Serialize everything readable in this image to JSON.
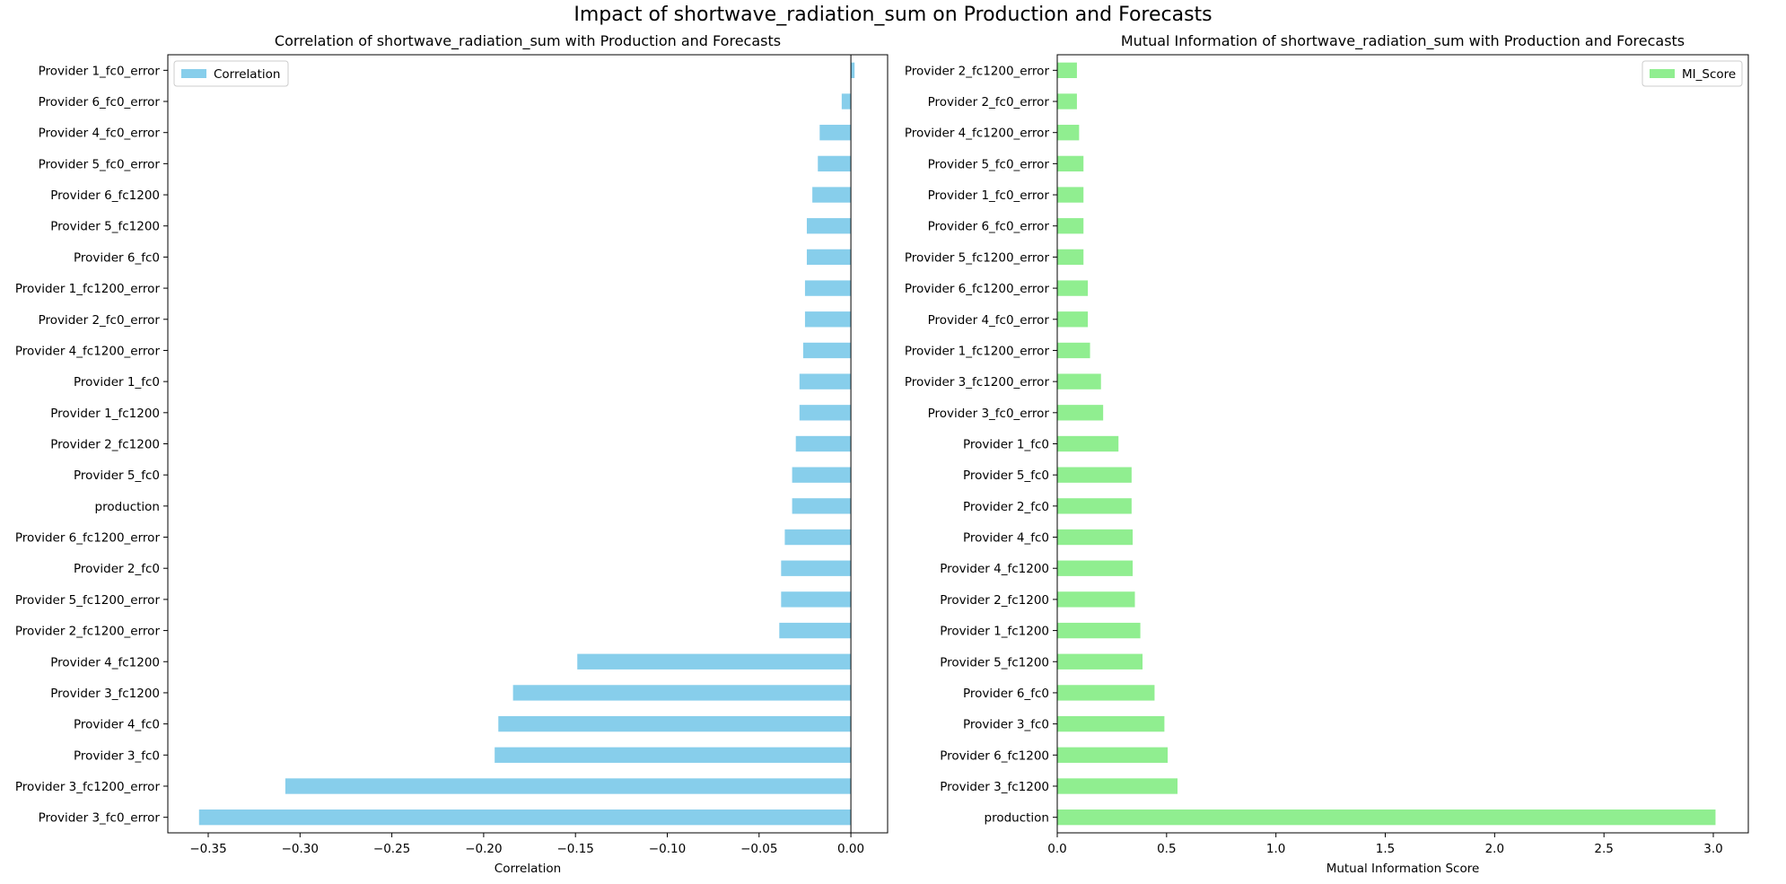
{
  "figure": {
    "suptitle": "Impact of shortwave_radiation_sum on Production and Forecasts"
  },
  "chart_data": [
    {
      "type": "bar",
      "orientation": "horizontal",
      "title": "Correlation of shortwave_radiation_sum with Production and Forecasts",
      "xlabel": "Correlation",
      "ylabel": "",
      "xlim": [
        -0.372,
        0.02
      ],
      "xticks": [
        -0.35,
        -0.3,
        -0.25,
        -0.2,
        -0.15,
        -0.1,
        -0.05,
        0.0
      ],
      "xtick_labels": [
        "−0.35",
        "−0.30",
        "−0.25",
        "−0.20",
        "−0.15",
        "−0.10",
        "−0.05",
        "0.00"
      ],
      "zero_line": true,
      "legend": {
        "position": "top-left",
        "entries": [
          "Correlation"
        ]
      },
      "color": "#87ceeb",
      "grid": false,
      "categories": [
        "Provider 1_fc0_error",
        "Provider 6_fc0_error",
        "Provider 4_fc0_error",
        "Provider 5_fc0_error",
        "Provider 6_fc1200",
        "Provider 5_fc1200",
        "Provider 6_fc0",
        "Provider 1_fc1200_error",
        "Provider 2_fc0_error",
        "Provider 4_fc1200_error",
        "Provider 1_fc0",
        "Provider 1_fc1200",
        "Provider 2_fc1200",
        "Provider 5_fc0",
        "production",
        "Provider 6_fc1200_error",
        "Provider 2_fc0",
        "Provider 5_fc1200_error",
        "Provider 2_fc1200_error",
        "Provider 4_fc1200",
        "Provider 3_fc1200",
        "Provider 4_fc0",
        "Provider 3_fc0",
        "Provider 3_fc1200_error",
        "Provider 3_fc0_error"
      ],
      "series": [
        {
          "name": "Correlation",
          "values": [
            0.002,
            -0.005,
            -0.017,
            -0.018,
            -0.021,
            -0.024,
            -0.024,
            -0.025,
            -0.025,
            -0.026,
            -0.028,
            -0.028,
            -0.03,
            -0.032,
            -0.032,
            -0.036,
            -0.038,
            -0.038,
            -0.039,
            -0.149,
            -0.184,
            -0.192,
            -0.194,
            -0.308,
            -0.355
          ]
        }
      ]
    },
    {
      "type": "bar",
      "orientation": "horizontal",
      "title": "Mutual Information of shortwave_radiation_sum with Production and Forecasts",
      "xlabel": "Mutual Information Score",
      "ylabel": "",
      "xlim": [
        0,
        3.16
      ],
      "xticks": [
        0,
        0.5,
        1.0,
        1.5,
        2.0,
        2.5,
        3.0
      ],
      "xtick_labels": [
        "0.0",
        "0.5",
        "1.0",
        "1.5",
        "2.0",
        "2.5",
        "3.0"
      ],
      "zero_line": false,
      "legend": {
        "position": "top-right",
        "entries": [
          "MI_Score"
        ]
      },
      "color": "#90ee90",
      "grid": false,
      "categories": [
        "Provider 2_fc1200_error",
        "Provider 2_fc0_error",
        "Provider 4_fc1200_error",
        "Provider 5_fc0_error",
        "Provider 1_fc0_error",
        "Provider 6_fc0_error",
        "Provider 5_fc1200_error",
        "Provider 6_fc1200_error",
        "Provider 4_fc0_error",
        "Provider 1_fc1200_error",
        "Provider 3_fc1200_error",
        "Provider 3_fc0_error",
        "Provider 1_fc0",
        "Provider 5_fc0",
        "Provider 2_fc0",
        "Provider 4_fc0",
        "Provider 4_fc1200",
        "Provider 2_fc1200",
        "Provider 1_fc1200",
        "Provider 5_fc1200",
        "Provider 6_fc0",
        "Provider 3_fc0",
        "Provider 6_fc1200",
        "Provider 3_fc1200",
        "production"
      ],
      "series": [
        {
          "name": "MI_Score",
          "values": [
            0.09,
            0.09,
            0.1,
            0.12,
            0.12,
            0.12,
            0.12,
            0.14,
            0.14,
            0.15,
            0.2,
            0.21,
            0.28,
            0.34,
            0.34,
            0.345,
            0.345,
            0.355,
            0.38,
            0.39,
            0.445,
            0.49,
            0.505,
            0.55,
            3.01
          ]
        }
      ]
    }
  ]
}
